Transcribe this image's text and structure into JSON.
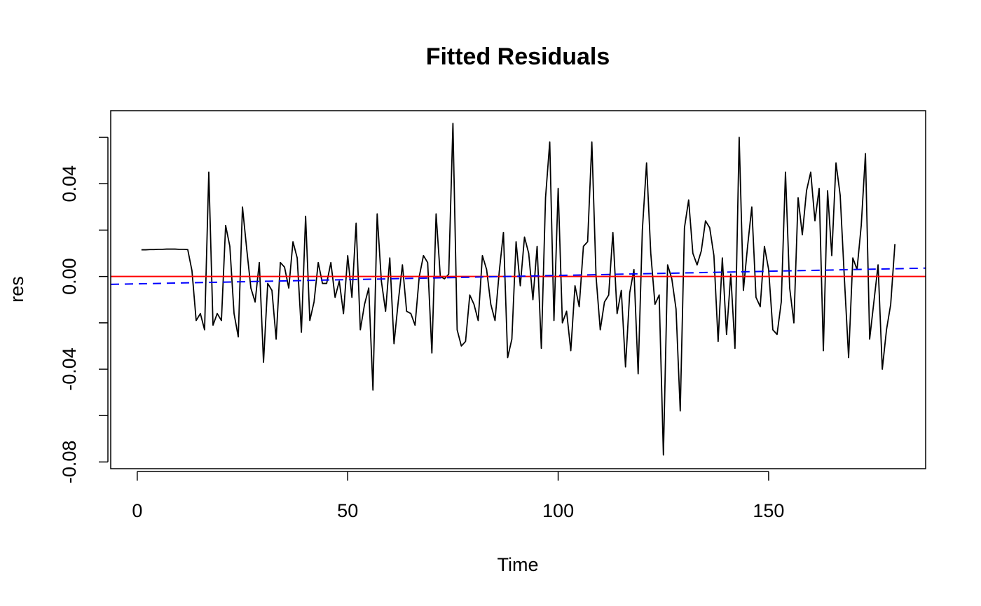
{
  "chart_data": {
    "type": "line",
    "title": "Fitted Residuals",
    "xlabel": "Time",
    "ylabel": "res",
    "xlim": [
      -6.3,
      187.3
    ],
    "ylim": [
      -0.0829,
      0.0715
    ],
    "x_ticks": [
      0,
      50,
      100,
      150
    ],
    "x_tick_labels": [
      "0",
      "50",
      "100",
      "150"
    ],
    "y_ticks": [
      -0.08,
      -0.06,
      -0.04,
      -0.02,
      0.0,
      0.02,
      0.04,
      0.06
    ],
    "y_tick_labels": [
      "-0.08",
      "",
      "-0.04",
      "",
      "0.00",
      "",
      "0.04",
      ""
    ],
    "grid": false,
    "legend": "none",
    "series": [
      {
        "type": "line",
        "color": "#000000",
        "style": "solid",
        "x_start": 1,
        "x_step": 1,
        "values": [
          0.0115,
          0.0115,
          0.0116,
          0.0116,
          0.0117,
          0.0117,
          0.0118,
          0.0118,
          0.0118,
          0.0117,
          0.0117,
          0.0116,
          0.0025,
          -0.019,
          -0.016,
          -0.023,
          0.045,
          -0.021,
          -0.016,
          -0.019,
          0.022,
          0.013,
          -0.016,
          -0.026,
          0.03,
          0.012,
          -0.005,
          -0.011,
          0.006,
          -0.037,
          -0.003,
          -0.006,
          -0.027,
          0.006,
          0.004,
          -0.005,
          0.015,
          0.008,
          -0.024,
          0.026,
          -0.019,
          -0.011,
          0.006,
          -0.003,
          -0.003,
          0.006,
          -0.009,
          -0.002,
          -0.016,
          0.009,
          -0.009,
          0.023,
          -0.023,
          -0.012,
          -0.005,
          -0.049,
          0.027,
          -0.002,
          -0.015,
          0.008,
          -0.029,
          -0.011,
          0.005,
          -0.015,
          -0.016,
          -0.021,
          0.0,
          0.009,
          0.006,
          -0.033,
          0.027,
          0.0,
          -0.001,
          0.001,
          0.066,
          -0.023,
          -0.03,
          -0.028,
          -0.008,
          -0.012,
          -0.019,
          0.009,
          0.003,
          -0.012,
          -0.019,
          0.002,
          0.019,
          -0.035,
          -0.027,
          0.015,
          -0.004,
          0.017,
          0.01,
          -0.01,
          0.013,
          -0.031,
          0.034,
          0.058,
          -0.019,
          0.038,
          -0.02,
          -0.015,
          -0.032,
          -0.004,
          -0.013,
          0.013,
          0.015,
          0.058,
          0.0,
          -0.023,
          -0.011,
          -0.008,
          0.019,
          -0.016,
          -0.006,
          -0.039,
          -0.007,
          0.003,
          -0.042,
          0.02,
          0.049,
          0.01,
          -0.012,
          -0.008,
          -0.077,
          0.005,
          -0.001,
          -0.014,
          -0.058,
          0.021,
          0.033,
          0.01,
          0.005,
          0.011,
          0.024,
          0.021,
          0.009,
          -0.028,
          0.008,
          -0.025,
          0.001,
          -0.031,
          0.06,
          -0.006,
          0.013,
          0.03,
          -0.009,
          -0.013,
          0.013,
          0.003,
          -0.023,
          -0.025,
          -0.011,
          0.045,
          -0.005,
          -0.02,
          0.034,
          0.018,
          0.037,
          0.045,
          0.024,
          0.038,
          -0.032,
          0.037,
          0.009,
          0.049,
          0.035,
          -0.001,
          -0.035,
          0.008,
          0.003,
          0.022,
          0.053,
          -0.027,
          -0.011,
          0.005,
          -0.04,
          -0.023,
          -0.012,
          0.014
        ]
      },
      {
        "type": "hline",
        "color": "#ff0000",
        "style": "solid",
        "y": 0.0
      },
      {
        "type": "trend",
        "color": "#0000ff",
        "style": "dashed",
        "x": [
          -6.3,
          187.3
        ],
        "y": [
          -0.0034,
          0.0036
        ]
      }
    ]
  }
}
